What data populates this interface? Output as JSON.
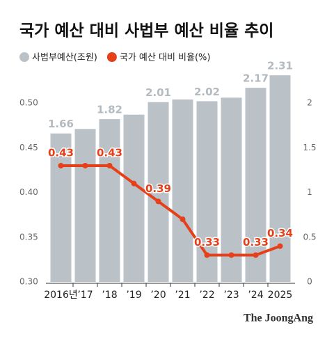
{
  "chart_data": {
    "type": "bar",
    "title": "국가 예산 대비 사법부 예산 비율 추이",
    "categories": [
      "2016년",
      "’17",
      "’18",
      "’19",
      "’20",
      "’21",
      "’22",
      "’23",
      "’24",
      "2025"
    ],
    "series": [
      {
        "name": "사법부예산(조원)",
        "type": "bar",
        "axis": "y2",
        "color": "#bac2c8",
        "values": [
          1.66,
          1.71,
          1.82,
          1.87,
          2.01,
          2.04,
          2.02,
          2.06,
          2.17,
          2.31
        ],
        "value_labels": [
          "1.66",
          null,
          "1.82",
          null,
          "2.01",
          null,
          "2.02",
          null,
          "2.17",
          "2.31"
        ]
      },
      {
        "name": "국가 예산 대비 비율(%)",
        "type": "line",
        "color": "#e5401a",
        "values": [
          0.43,
          0.43,
          0.43,
          0.41,
          0.39,
          0.37,
          0.33,
          0.33,
          0.33,
          0.34
        ],
        "value_labels": [
          "0.43",
          null,
          "0.43",
          null,
          "0.39",
          null,
          "0.33",
          null,
          "0.33",
          "0.34"
        ]
      }
    ],
    "ylim": [
      0.3,
      0.5
    ],
    "yticks": [
      {
        "value": 0.3,
        "label": "0.30"
      },
      0.35,
      {
        "value": 0.4,
        "label": "0.40"
      },
      0.45,
      {
        "value": 0.5,
        "label": "0.50"
      }
    ],
    "y2lim": [
      0,
      2
    ],
    "y2ticks": [
      0,
      0.5,
      1,
      1.5,
      2
    ],
    "source": "The JoongAng"
  }
}
